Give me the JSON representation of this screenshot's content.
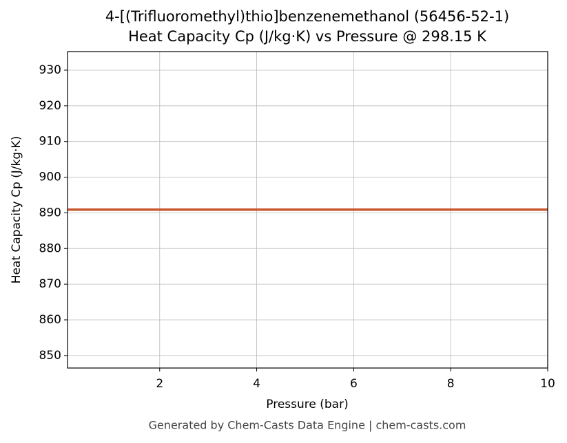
{
  "chart_data": {
    "type": "line",
    "title": "4-[(Trifluoromethyl)thio]benzenemethanol (56456-52-1)",
    "subtitle": "Heat Capacity Cp (J/kg·K) vs Pressure @ 298.15 K",
    "x_label": "Pressure (bar)",
    "y_label": "Heat Capacity Cp (J/kg·K)",
    "footer": "Generated by Chem-Casts Data Engine | chem-casts.com",
    "x": [
      0.1,
      10
    ],
    "series": [
      {
        "name": "Cp",
        "color": "#c8562e",
        "values": [
          890.9,
          890.9
        ]
      }
    ],
    "xlim": [
      0.1,
      10
    ],
    "xticks": [
      2,
      4,
      6,
      8,
      10
    ],
    "ylim": [
      846.5,
      935.2
    ],
    "yticks": [
      850,
      860,
      870,
      880,
      890,
      900,
      910,
      920,
      930
    ],
    "grid": true
  }
}
